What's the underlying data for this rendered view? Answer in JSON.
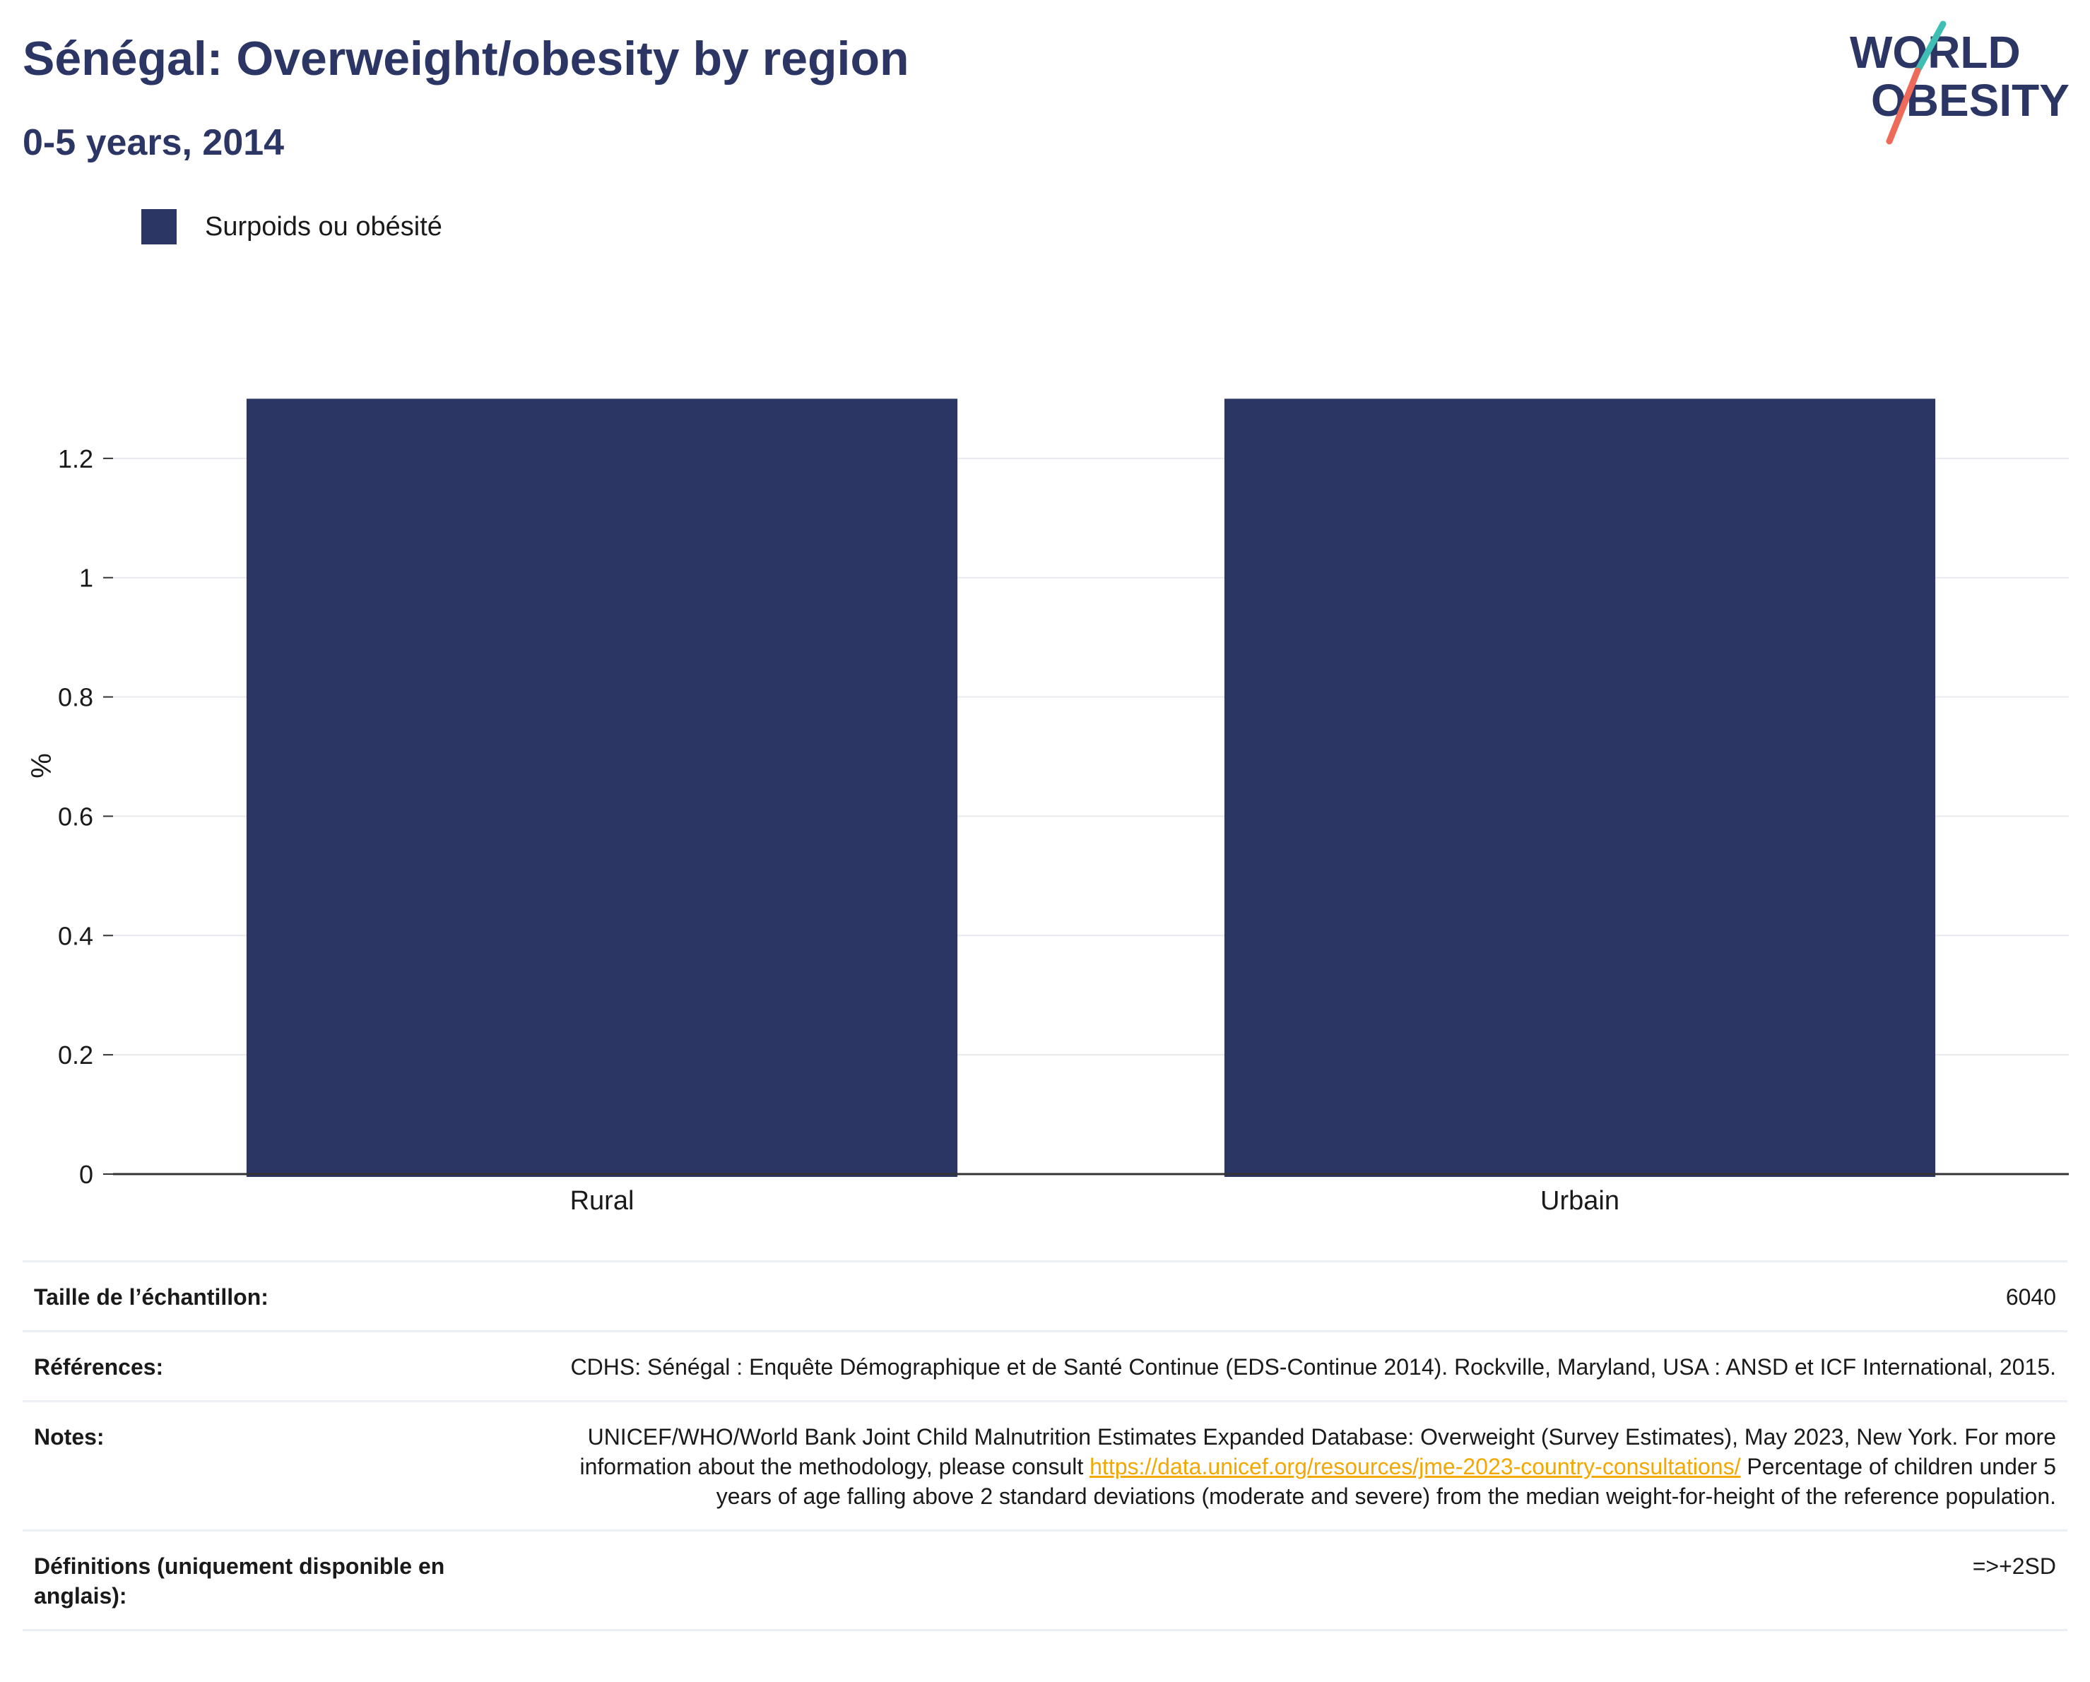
{
  "header": {
    "title": "Sénégal: Overweight/obesity by region",
    "subtitle": "0-5 years, 2014"
  },
  "logo": {
    "line1": "WORLD",
    "line2": "OBESITY"
  },
  "colors": {
    "bar": "#2b3664",
    "title": "#2b3664",
    "link": "#f2a800",
    "logo_teal": "#3fbfb3",
    "logo_coral": "#ee6b5a"
  },
  "chart_data": {
    "type": "bar",
    "categories": [
      "Rural",
      "Urbain"
    ],
    "series": [
      {
        "name": "Surpoids ou obésité",
        "values": [
          1.3,
          1.3
        ]
      }
    ],
    "ylabel": "%",
    "ylim": [
      0,
      1.4
    ],
    "yticks": [
      0,
      0.2,
      0.4,
      0.6,
      0.8,
      1,
      1.2
    ],
    "ytick_labels": [
      "0",
      "0.2",
      "0.4",
      "0.6",
      "0.8",
      "1",
      "1.2"
    ],
    "grid": true,
    "legend": "top-left"
  },
  "info": {
    "sample_size_label": "Taille de l’échantillon:",
    "sample_size_value": "6040",
    "references_label": "Références:",
    "references_value": "CDHS: Sénégal : Enquête Démographique et de Santé Continue (EDS-Continue 2014). Rockville, Maryland, USA : ANSD et ICF International, 2015.",
    "notes_label": "Notes:",
    "notes_text_1": "UNICEF/WHO/World Bank Joint Child Malnutrition Estimates Expanded Database: Overweight (Survey Estimates), May 2023, New York. For more information about the methodology, please consult ",
    "notes_link": "https://data.unicef.org/resources/jme-2023-country-consultations/",
    "notes_text_2": " Percentage of children under 5 years of age falling above 2 standard deviations (moderate and severe) from the median weight-for-height of the reference population.",
    "definitions_label": "Définitions (uniquement disponible en anglais):",
    "definitions_value": "=>+2SD"
  }
}
